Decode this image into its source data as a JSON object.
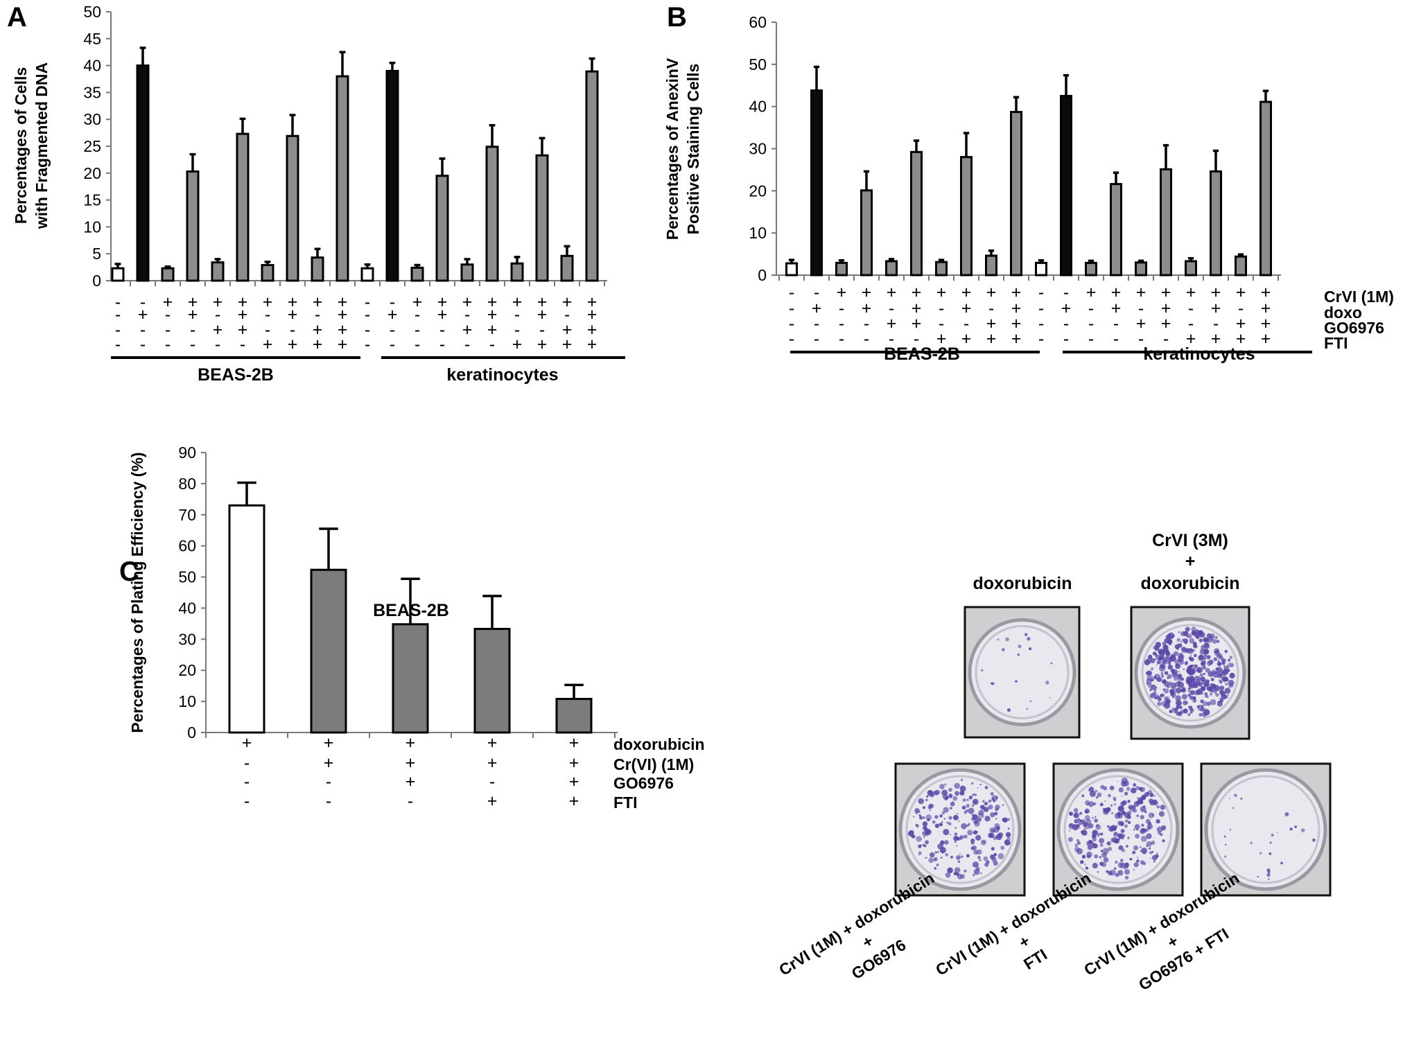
{
  "chart_data": [
    {
      "panel": "A",
      "type": "bar",
      "ylabel": [
        "Percentages of Cells",
        "with Fragmented DNA"
      ],
      "ylim": [
        0,
        50
      ],
      "yticks": [
        0,
        5,
        10,
        15,
        20,
        25,
        30,
        35,
        40,
        45,
        50
      ],
      "bars": [
        {
          "value": 2.3,
          "error": 0.8,
          "fill": "white"
        },
        {
          "value": 40,
          "error": 3.3,
          "fill": "black"
        },
        {
          "value": 2.3,
          "error": 0.3,
          "fill": "gray"
        },
        {
          "value": 20.3,
          "error": 3.2,
          "fill": "gray"
        },
        {
          "value": 3.4,
          "error": 0.6,
          "fill": "gray"
        },
        {
          "value": 27.3,
          "error": 2.8,
          "fill": "gray"
        },
        {
          "value": 2.9,
          "error": 0.6,
          "fill": "gray"
        },
        {
          "value": 26.9,
          "error": 3.9,
          "fill": "gray"
        },
        {
          "value": 4.3,
          "error": 1.6,
          "fill": "gray"
        },
        {
          "value": 38,
          "error": 4.5,
          "fill": "gray"
        },
        {
          "value": 2.3,
          "error": 0.7,
          "fill": "white"
        },
        {
          "value": 39,
          "error": 1.5,
          "fill": "black"
        },
        {
          "value": 2.4,
          "error": 0.5,
          "fill": "gray"
        },
        {
          "value": 19.5,
          "error": 3.2,
          "fill": "gray"
        },
        {
          "value": 3,
          "error": 1,
          "fill": "gray"
        },
        {
          "value": 24.9,
          "error": 4,
          "fill": "gray"
        },
        {
          "value": 3.2,
          "error": 1.2,
          "fill": "gray"
        },
        {
          "value": 23.3,
          "error": 3.2,
          "fill": "gray"
        },
        {
          "value": 4.6,
          "error": 1.8,
          "fill": "gray"
        },
        {
          "value": 38.9,
          "error": 2.4,
          "fill": "gray"
        }
      ],
      "conditions": [
        [
          "-",
          "-",
          "+",
          "+",
          "+",
          "+",
          "+",
          "+",
          "+",
          "+",
          "-",
          "-",
          "+",
          "+",
          "+",
          "+",
          "+",
          "+",
          "+",
          "+"
        ],
        [
          "-",
          "+",
          "-",
          "+",
          "-",
          "+",
          "-",
          "+",
          "-",
          "+",
          "-",
          "+",
          "-",
          "+",
          "-",
          "+",
          "-",
          "+",
          "-",
          "+"
        ],
        [
          "-",
          "-",
          "-",
          "-",
          "+",
          "+",
          "-",
          "-",
          "+",
          "+",
          "-",
          "-",
          "-",
          "-",
          "+",
          "+",
          "-",
          "-",
          "+",
          "+"
        ],
        [
          "-",
          "-",
          "-",
          "-",
          "-",
          "-",
          "+",
          "+",
          "+",
          "+",
          "-",
          "-",
          "-",
          "-",
          "-",
          "-",
          "+",
          "+",
          "+",
          "+"
        ]
      ],
      "groups": [
        "BEAS-2B",
        "keratinocytes"
      ]
    },
    {
      "panel": "B",
      "type": "bar",
      "ylabel": [
        "Percentages of AnexinV",
        "Positive Staining Cells"
      ],
      "ylim": [
        0,
        60
      ],
      "yticks": [
        0,
        10,
        20,
        30,
        40,
        50,
        60
      ],
      "bars": [
        {
          "value": 2.8,
          "error": 0.8,
          "fill": "white"
        },
        {
          "value": 43.8,
          "error": 5.6,
          "fill": "black"
        },
        {
          "value": 2.9,
          "error": 0.6,
          "fill": "gray"
        },
        {
          "value": 20.1,
          "error": 4.5,
          "fill": "gray"
        },
        {
          "value": 3.3,
          "error": 0.5,
          "fill": "gray"
        },
        {
          "value": 29.2,
          "error": 2.7,
          "fill": "gray"
        },
        {
          "value": 3.1,
          "error": 0.5,
          "fill": "gray"
        },
        {
          "value": 28,
          "error": 5.7,
          "fill": "gray"
        },
        {
          "value": 4.6,
          "error": 1.2,
          "fill": "gray"
        },
        {
          "value": 38.7,
          "error": 3.5,
          "fill": "gray"
        },
        {
          "value": 2.9,
          "error": 0.6,
          "fill": "white"
        },
        {
          "value": 42.5,
          "error": 4.9,
          "fill": "black"
        },
        {
          "value": 2.9,
          "error": 0.5,
          "fill": "gray"
        },
        {
          "value": 21.6,
          "error": 2.7,
          "fill": "gray"
        },
        {
          "value": 3,
          "error": 0.4,
          "fill": "gray"
        },
        {
          "value": 25.1,
          "error": 5.7,
          "fill": "gray"
        },
        {
          "value": 3.3,
          "error": 0.7,
          "fill": "gray"
        },
        {
          "value": 24.6,
          "error": 4.9,
          "fill": "gray"
        },
        {
          "value": 4.4,
          "error": 0.5,
          "fill": "gray"
        },
        {
          "value": 41.1,
          "error": 2.6,
          "fill": "gray"
        }
      ],
      "row_labels": [
        "CrVI (1M)",
        "doxo",
        "GO6976",
        "FTI"
      ],
      "conditions": [
        [
          "-",
          "-",
          "+",
          "+",
          "+",
          "+",
          "+",
          "+",
          "+",
          "+",
          "-",
          "-",
          "+",
          "+",
          "+",
          "+",
          "+",
          "+",
          "+",
          "+"
        ],
        [
          "-",
          "+",
          "-",
          "+",
          "-",
          "+",
          "-",
          "+",
          "-",
          "+",
          "-",
          "+",
          "-",
          "+",
          "-",
          "+",
          "-",
          "+",
          "-",
          "+"
        ],
        [
          "-",
          "-",
          "-",
          "-",
          "+",
          "+",
          "-",
          "-",
          "+",
          "+",
          "-",
          "-",
          "-",
          "-",
          "+",
          "+",
          "-",
          "-",
          "+",
          "+"
        ],
        [
          "-",
          "-",
          "-",
          "-",
          "-",
          "-",
          "+",
          "+",
          "+",
          "+",
          "-",
          "-",
          "-",
          "-",
          "-",
          "-",
          "+",
          "+",
          "+",
          "+"
        ]
      ],
      "groups": [
        "BEAS-2B",
        "keratinocytes"
      ]
    },
    {
      "panel": "C",
      "type": "bar",
      "title": "BEAS-2B",
      "ylabel": "Percentages of Plating Efficiency (%)",
      "ylim": [
        0,
        90
      ],
      "yticks": [
        0,
        10,
        20,
        30,
        40,
        50,
        60,
        70,
        80,
        90
      ],
      "bars": [
        {
          "value": 73,
          "error": 7.3,
          "fill": "white"
        },
        {
          "value": 52.3,
          "error": 13.2,
          "fill": "gray"
        },
        {
          "value": 34.8,
          "error": 14.6,
          "fill": "gray"
        },
        {
          "value": 33.3,
          "error": 10.6,
          "fill": "gray"
        },
        {
          "value": 10.8,
          "error": 4.5,
          "fill": "gray"
        }
      ],
      "row_labels": [
        "doxorubicin",
        "Cr(VI) (1M)",
        "GO6976",
        "FTI"
      ],
      "conditions": [
        [
          "+",
          "+",
          "+",
          "+",
          "+"
        ],
        [
          "-",
          "+",
          "+",
          "+",
          "+"
        ],
        [
          "-",
          "-",
          "+",
          "-",
          "+"
        ],
        [
          "-",
          "-",
          "-",
          "+",
          "+"
        ]
      ]
    }
  ],
  "colors": {
    "black": "#0b0b0b",
    "gray": "#8c8c8c",
    "gray_c": "#7c7c7c",
    "white": "#ffffff",
    "stain": "#5b48a8"
  },
  "dishes": {
    "top": [
      {
        "caption_lines": [
          "doxorubicin"
        ]
      },
      {
        "caption_lines": [
          "CrVI (3M)",
          "+",
          "doxorubicin"
        ]
      }
    ],
    "bottom": [
      {
        "caption_lines": [
          "CrVI (1M) + doxorubicin",
          "+",
          "GO6976"
        ]
      },
      {
        "caption_lines": [
          "CrVI (1M) + doxorubicin",
          "+",
          "FTI"
        ]
      },
      {
        "caption_lines": [
          "CrVI (1M) + doxorubicin",
          "+",
          "GO6976 + FTI"
        ]
      }
    ]
  },
  "panel_labels": [
    "A",
    "B",
    "C"
  ]
}
